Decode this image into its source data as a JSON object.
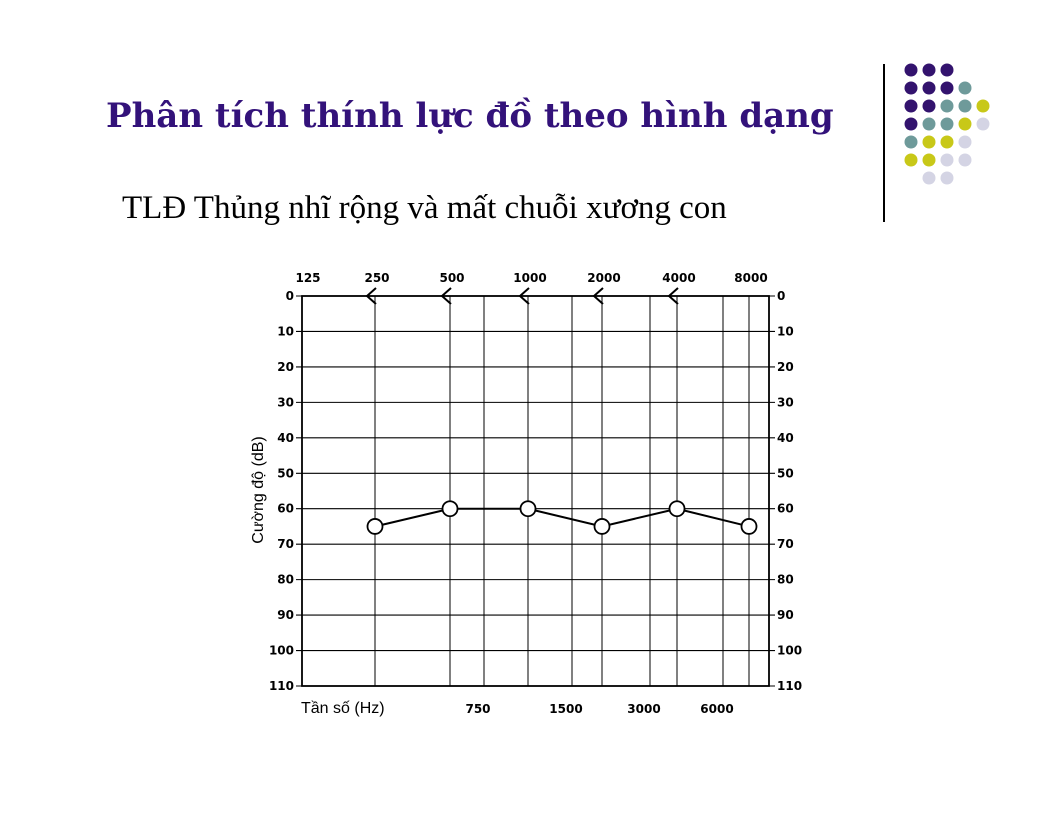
{
  "slide": {
    "title": "Phân tích thính lực đồ theo hình dạng",
    "subtitle": "TLĐ Thủng nhĩ rộng và mất chuỗi xương con"
  },
  "decoration": {
    "dot_rows": [
      [
        "purple",
        "purple",
        "purple"
      ],
      [
        "purple",
        "purple",
        "purple",
        "teal"
      ],
      [
        "purple",
        "purple",
        "teal",
        "teal",
        "olive"
      ],
      [
        "purple",
        "teal",
        "teal",
        "olive",
        "lilac"
      ],
      [
        "teal",
        "olive",
        "olive",
        "lilac"
      ],
      [
        "olive",
        "olive",
        "lilac",
        "lilac"
      ],
      [
        "lilac",
        "lilac"
      ]
    ],
    "colors": {
      "purple": "#33136e",
      "teal": "#6e9a9a",
      "olive": "#c8c818",
      "lilac": "#d4d4e4"
    }
  },
  "chart_data": {
    "type": "line",
    "top_frequency_labels": [
      "125",
      "250",
      "500",
      "1000",
      "2000",
      "4000",
      "8000"
    ],
    "bottom_frequency_labels": [
      "750",
      "1500",
      "3000",
      "6000"
    ],
    "xlabel": "Tần số (Hz)",
    "ylabel": "Cường độ (dB)",
    "y_ticks": [
      "0",
      "10",
      "20",
      "30",
      "40",
      "50",
      "60",
      "70",
      "80",
      "90",
      "100",
      "110"
    ],
    "ylim": [
      0,
      110
    ],
    "y_inverted": true,
    "grid": true,
    "bone_conduction_markers": [
      {
        "freq": 250,
        "db": 0,
        "symbol": "<"
      },
      {
        "freq": 500,
        "db": 0,
        "symbol": "<"
      },
      {
        "freq": 1000,
        "db": 0,
        "symbol": "<"
      },
      {
        "freq": 2000,
        "db": 0,
        "symbol": "<"
      },
      {
        "freq": 4000,
        "db": 0,
        "symbol": "<"
      }
    ],
    "series": [
      {
        "marker": "circle-open",
        "points": [
          {
            "freq": 250,
            "db": 65
          },
          {
            "freq": 500,
            "db": 60
          },
          {
            "freq": 1000,
            "db": 60
          },
          {
            "freq": 2000,
            "db": 65
          },
          {
            "freq": 4000,
            "db": 60
          },
          {
            "freq": 8000,
            "db": 65
          }
        ]
      }
    ]
  }
}
